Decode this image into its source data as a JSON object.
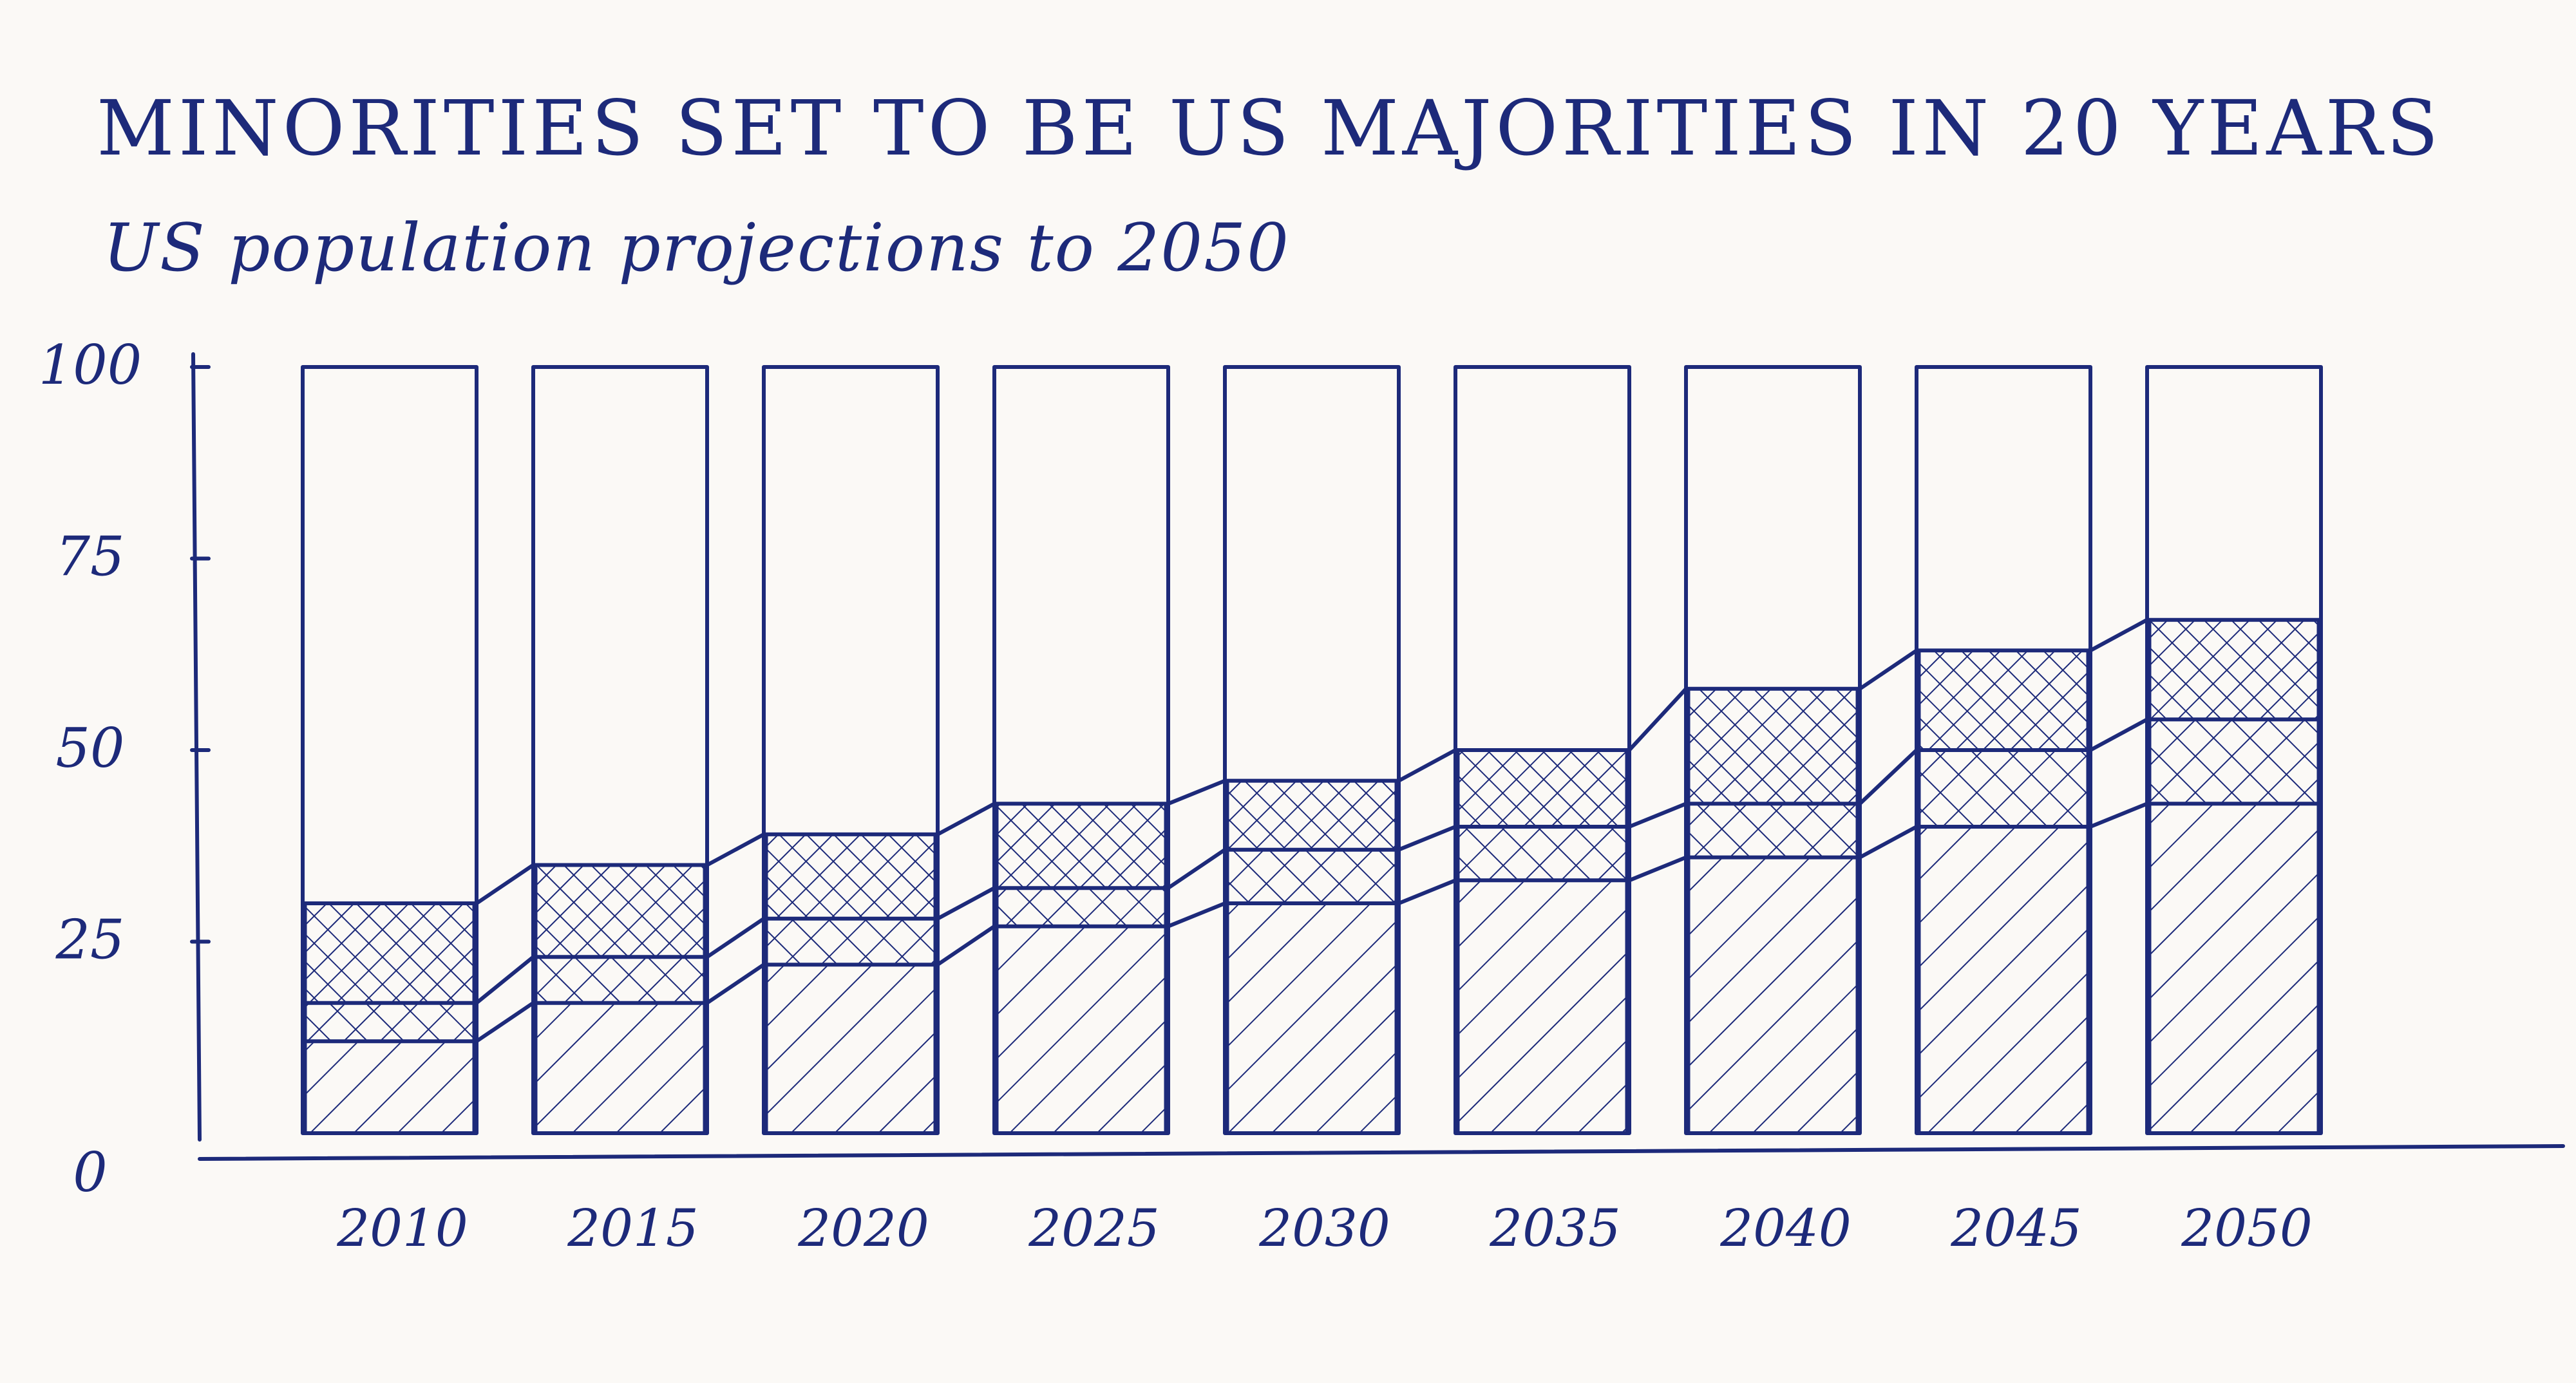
{
  "chart_data": {
    "type": "bar",
    "stacked": true,
    "title": "MINORITIES SET TO BE US MAJORITIES IN 20 YEARS",
    "subtitle": "US population projections to 2050",
    "xlabel": "",
    "ylabel": "",
    "ylim": [
      0,
      100
    ],
    "yticks": [
      0,
      25,
      50,
      75,
      100
    ],
    "grid": false,
    "legend": "none",
    "categories": [
      "2010",
      "2015",
      "2020",
      "2025",
      "2030",
      "2035",
      "2040",
      "2045",
      "2050"
    ],
    "series": [
      {
        "pattern": "diagonal",
        "values": [
          12,
          17,
          22,
          27,
          30,
          33,
          36,
          40,
          43
        ]
      },
      {
        "pattern": "cross-hatch-light",
        "values": [
          5,
          6,
          6,
          5,
          7,
          7,
          7,
          10,
          11
        ]
      },
      {
        "pattern": "cross-hatch-dense",
        "values": [
          13,
          12,
          11,
          11,
          9,
          10,
          15,
          13,
          13
        ]
      }
    ],
    "totals_top_line": [
      30,
      35,
      39,
      43,
      46,
      50,
      58,
      63,
      67
    ],
    "bar_full_height": 100
  },
  "colors": {
    "ink": "#1d2a7a",
    "paper": "#fbf9f6"
  }
}
